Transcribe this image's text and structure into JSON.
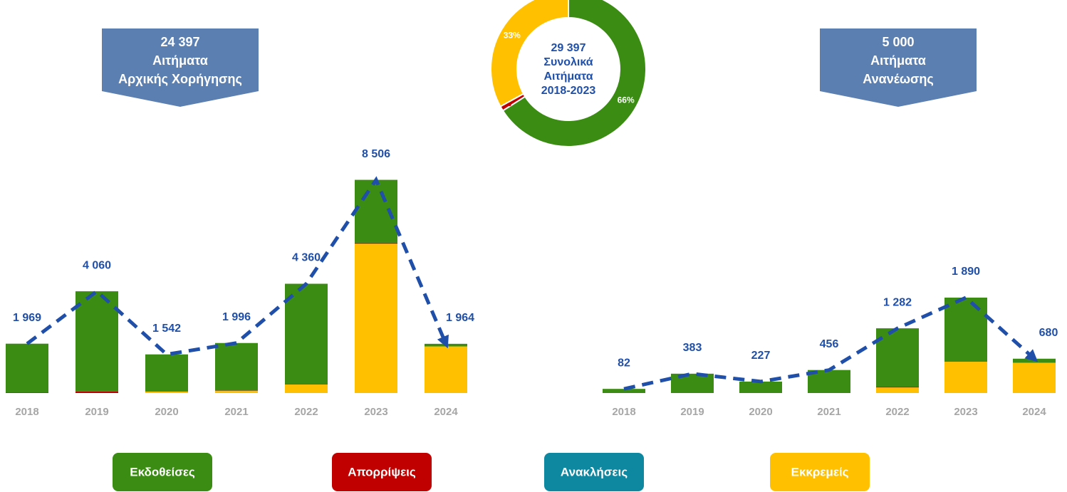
{
  "chart_data": [
    {
      "type": "pie",
      "donut": true,
      "center_text": [
        "29 397",
        "Συνολικά",
        "Αιτήματα",
        "2018-2023"
      ],
      "values": [
        66,
        1,
        33
      ],
      "value_labels": [
        "66%",
        "1%",
        "33%"
      ],
      "colors": [
        "#3a8c12",
        "#c00000",
        "#ffc000"
      ]
    },
    {
      "type": "bar",
      "stacked": true,
      "title": [
        "24 397",
        "Αιτήματα",
        "Αρχικής Χορήγησης"
      ],
      "categories": [
        "2018",
        "2019",
        "2020",
        "2021",
        "2022",
        "2023",
        "2024"
      ],
      "series": [
        {
          "name": "Εκδοθείσες",
          "color": "#3a8c12",
          "values": [
            1954,
            4000,
            1472,
            1896,
            4000,
            2506,
            104
          ]
        },
        {
          "name": "Απορρίψεις",
          "color": "#c00000",
          "values": [
            15,
            60,
            10,
            10,
            20,
            40,
            0
          ]
        },
        {
          "name": "Ανακλήσεις",
          "color": "#0e87a0",
          "values": [
            0,
            0,
            0,
            0,
            0,
            0,
            0
          ]
        },
        {
          "name": "Εκκρεμείς",
          "color": "#ffc000",
          "values": [
            0,
            0,
            60,
            90,
            340,
            5960,
            1860
          ]
        }
      ],
      "line": {
        "color": "#1f4fa8",
        "values": [
          1969,
          4060,
          1542,
          1996,
          4360,
          8506,
          1964
        ],
        "value_labels": [
          "1 969",
          "4 060",
          "1 542",
          "1 996",
          "4 360",
          "8 506",
          "1 964"
        ]
      },
      "ylim": [
        0,
        10000
      ]
    },
    {
      "type": "bar",
      "stacked": true,
      "title": [
        "5 000",
        "Αιτήματα",
        "Ανανέωσης"
      ],
      "categories": [
        "2018",
        "2019",
        "2020",
        "2021",
        "2022",
        "2023",
        "2024"
      ],
      "series": [
        {
          "color": "#3a8c12",
          "values": [
            82,
            383,
            227,
            456,
            1162,
            1270,
            80
          ]
        },
        {
          "color": "#c00000",
          "values": [
            0,
            0,
            0,
            0,
            10,
            0,
            0
          ]
        },
        {
          "color": "#0e87a0",
          "values": [
            0,
            0,
            0,
            0,
            0,
            0,
            0
          ]
        },
        {
          "color": "#ffc000",
          "values": [
            0,
            0,
            0,
            0,
            110,
            620,
            600
          ]
        }
      ],
      "line": {
        "color": "#1f4fa8",
        "values": [
          82,
          383,
          227,
          456,
          1282,
          1890,
          680
        ],
        "value_labels": [
          "82",
          "383",
          "227",
          "456",
          "1 282",
          "1 890",
          "680"
        ]
      },
      "ylim": [
        0,
        2000
      ]
    }
  ]
}
